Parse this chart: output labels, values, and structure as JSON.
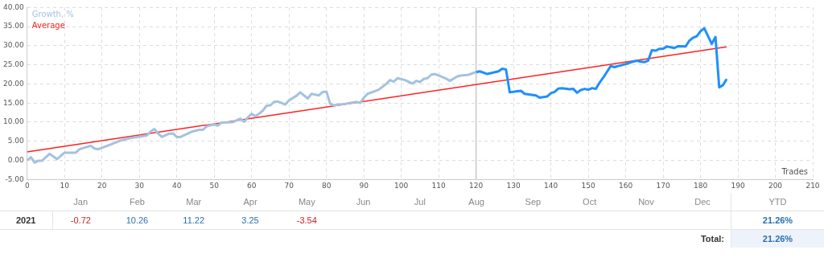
{
  "chart_data": [
    {
      "type": "line",
      "xlabel": "Trades",
      "legend": "top left",
      "grid": true,
      "marker": "none",
      "line_style": "solid",
      "xlim": [
        0,
        210
      ],
      "xticks": [
        0,
        10,
        20,
        30,
        40,
        50,
        60,
        70,
        80,
        90,
        100,
        110,
        120,
        130,
        140,
        150,
        160,
        170,
        180,
        190,
        200,
        210
      ],
      "ylim": [
        -5,
        40
      ],
      "yticks": [
        {
          "value": -5,
          "label": "-5.00"
        },
        {
          "value": 0,
          "label": "0.00"
        },
        {
          "value": 5,
          "label": "5.00"
        },
        {
          "value": 10,
          "label": "10.00"
        },
        {
          "value": 15,
          "label": "15.00"
        },
        {
          "value": 20,
          "label": "20.00"
        },
        {
          "value": 25,
          "label": "25.00"
        },
        {
          "value": 30,
          "label": "30.00"
        },
        {
          "value": 35,
          "label": "35.00"
        },
        {
          "value": 40,
          "label": "40.00"
        }
      ],
      "ref_lines": [
        {
          "axis": "x",
          "value": 120,
          "label": null,
          "color": "#c8c8c8"
        }
      ],
      "series": [
        {
          "name": "Growth, %",
          "color": "#a4c2e0",
          "x": [
            0,
            1,
            2,
            3,
            4,
            6,
            8,
            9,
            10,
            13,
            14,
            17,
            18,
            19,
            22,
            25,
            28,
            32,
            33,
            34,
            35,
            36,
            38,
            39,
            40,
            41,
            44,
            46,
            47,
            48,
            50,
            51,
            52,
            55,
            57,
            58,
            59,
            60,
            61,
            62,
            63,
            64,
            65,
            66,
            67,
            68,
            69,
            70,
            72,
            73,
            75,
            76,
            78,
            79,
            80,
            81,
            82,
            85,
            88,
            89,
            90,
            91,
            94,
            96,
            97,
            98,
            99,
            101,
            103,
            104,
            105,
            106,
            107,
            108,
            109,
            110,
            112,
            113,
            115,
            116,
            118,
            120
          ],
          "values": [
            0,
            0.8,
            -0.6,
            -0.1,
            -0.1,
            1.7,
            0.3,
            1.2,
            2.0,
            2.0,
            2.9,
            3.8,
            3.1,
            2.9,
            4.0,
            5.2,
            5.9,
            6.5,
            7.5,
            8.2,
            7.0,
            6.1,
            7.0,
            7.0,
            6.1,
            6.1,
            7.5,
            8.0,
            8.0,
            8.9,
            9.4,
            9.1,
            9.9,
            10.0,
            10.9,
            10.1,
            11.2,
            12.2,
            11.5,
            12.2,
            13.0,
            14.3,
            14.4,
            15.3,
            15.4,
            15.0,
            14.6,
            15.7,
            16.9,
            17.8,
            16.2,
            17.4,
            17.0,
            17.9,
            18.0,
            14.8,
            14.4,
            14.8,
            15.3,
            15.0,
            16.4,
            17.4,
            18.5,
            20.0,
            21.0,
            20.6,
            21.5,
            21.0,
            20.1,
            20.8,
            20.5,
            21.3,
            21.5,
            22.4,
            22.6,
            22.2,
            21.4,
            20.8,
            22.0,
            22.2,
            22.4,
            23.1
          ]
        },
        {
          "color": "#1e8fff",
          "x": [
            120,
            121,
            123,
            126,
            127,
            128,
            129,
            131,
            132,
            133,
            136,
            137,
            139,
            140,
            141,
            142,
            143,
            145,
            146,
            147,
            148,
            149,
            150,
            151,
            152,
            153,
            154.5,
            156,
            157,
            158,
            160,
            161.5,
            163,
            164,
            165,
            166,
            167,
            168,
            169,
            170,
            171,
            172,
            173,
            174,
            176,
            177,
            178,
            179,
            180,
            181,
            183,
            184,
            185,
            186,
            187
          ],
          "values": [
            23.1,
            23.3,
            22.6,
            23.3,
            24.0,
            23.8,
            17.8,
            18.1,
            18.2,
            17.4,
            17.0,
            16.4,
            16.7,
            17.6,
            17.9,
            18.8,
            18.9,
            18.6,
            18.7,
            17.7,
            18.4,
            18.7,
            18.5,
            18.9,
            18.7,
            20.3,
            22.4,
            24.7,
            24.4,
            24.7,
            25.2,
            25.7,
            26.1,
            25.8,
            25.7,
            26.1,
            28.8,
            28.7,
            29.2,
            29.2,
            29.8,
            29.6,
            29.4,
            29.9,
            29.8,
            31.3,
            32.1,
            32.5,
            33.8,
            34.6,
            30.5,
            32.3,
            19.1,
            19.7,
            21.3
          ]
        },
        {
          "name": "Average",
          "color": "#ff2020",
          "x": [
            0,
            187
          ],
          "values": [
            2.2,
            29.7
          ]
        }
      ]
    },
    {
      "type": "other",
      "categories": [
        "Jan",
        "Feb",
        "Mar",
        "Apr",
        "May",
        "Jun",
        "Jul",
        "Aug",
        "Sep",
        "Oct",
        "Nov",
        "Dec",
        "YTD"
      ],
      "y_categories": [
        "2021",
        "Total:"
      ],
      "cell_labels": [
        [
          "-0.72",
          "10.26",
          "11.22",
          "3.25",
          "-3.54",
          null,
          null,
          null,
          null,
          null,
          null,
          null,
          "21.26%"
        ],
        [
          null,
          null,
          null,
          null,
          null,
          null,
          null,
          null,
          null,
          null,
          null,
          null,
          "21.26%"
        ]
      ]
    }
  ]
}
